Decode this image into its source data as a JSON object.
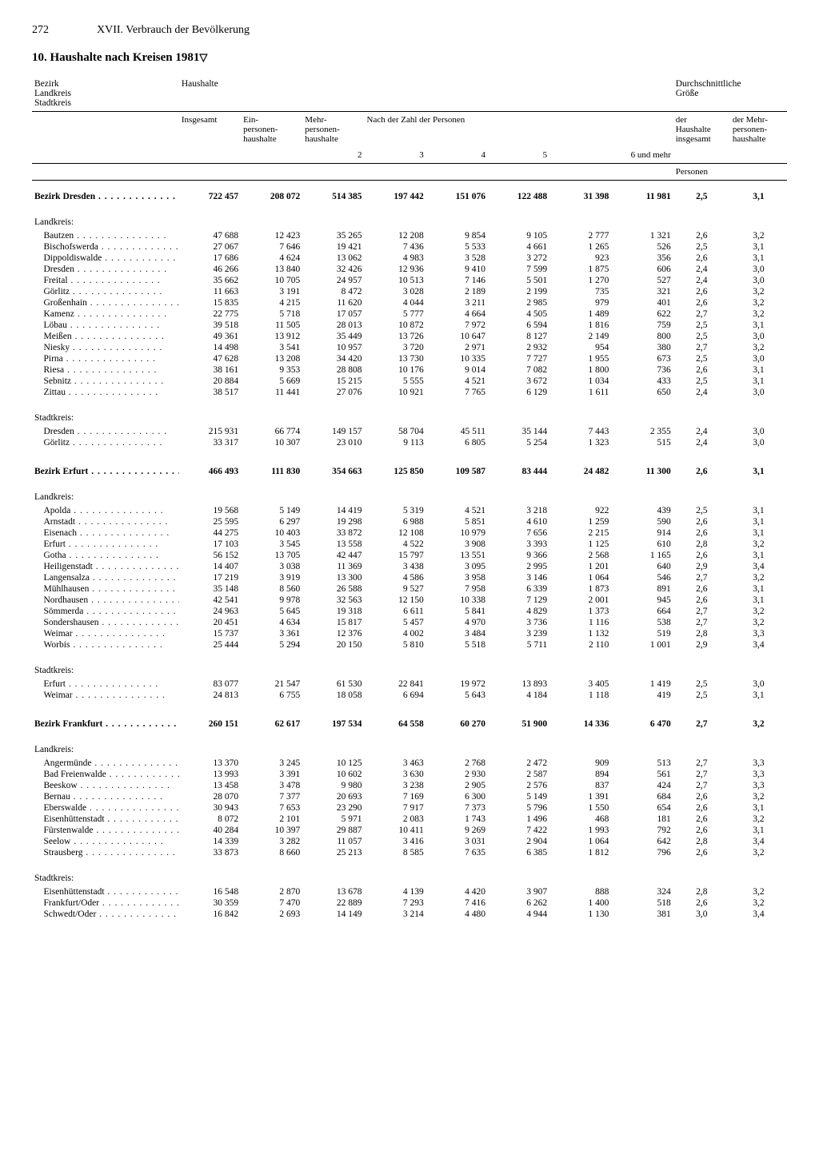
{
  "page": {
    "number": "272",
    "chapter": "XVII. Verbrauch der Bevölkerung"
  },
  "title": "10. Haushalte nach Kreisen 1981",
  "headers": {
    "rowhead": [
      "Bezirk",
      "Landkreis",
      "Stadtkreis"
    ],
    "haushalte": "Haushalte",
    "durchschnitt": [
      "Durchschnittliche",
      "Größe"
    ],
    "insgesamt": "Insgesamt",
    "ein": [
      "Ein-",
      "personen-",
      "haushalte"
    ],
    "mehr": [
      "Mehr-",
      "personen-",
      "haushalte"
    ],
    "nach": "Nach der Zahl der Personen",
    "p2": "2",
    "p3": "3",
    "p4": "4",
    "p5": "5",
    "p6": "6 und mehr",
    "der": "der",
    "derMehr": "der Mehr-",
    "haushalteIns": "Haushalte insgesamt",
    "personenhh": "personen-haushalte",
    "personen": "Personen"
  },
  "labels": {
    "landkreis": "Landkreis:",
    "stadtkreis": "Stadtkreis:"
  },
  "blocks": [
    {
      "bezirk": {
        "name": "Bezirk Dresden",
        "v": [
          "722 457",
          "208 072",
          "514 385",
          "197 442",
          "151 076",
          "122 488",
          "31 398",
          "11 981",
          "2,5",
          "3,1"
        ]
      },
      "landkreis": [
        {
          "name": "Bautzen",
          "v": [
            "47 688",
            "12 423",
            "35 265",
            "12 208",
            "9 854",
            "9 105",
            "2 777",
            "1 321",
            "2,6",
            "3,2"
          ]
        },
        {
          "name": "Bischofswerda",
          "v": [
            "27 067",
            "7 646",
            "19 421",
            "7 436",
            "5 533",
            "4 661",
            "1 265",
            "526",
            "2,5",
            "3,1"
          ]
        },
        {
          "name": "Dippoldiswalde",
          "v": [
            "17 686",
            "4 624",
            "13 062",
            "4 983",
            "3 528",
            "3 272",
            "923",
            "356",
            "2,6",
            "3,1"
          ]
        },
        {
          "name": "Dresden",
          "v": [
            "46 266",
            "13 840",
            "32 426",
            "12 936",
            "9 410",
            "7 599",
            "1 875",
            "606",
            "2,4",
            "3,0"
          ]
        },
        {
          "name": "Freital",
          "v": [
            "35 662",
            "10 705",
            "24 957",
            "10 513",
            "7 146",
            "5 501",
            "1 270",
            "527",
            "2,4",
            "3,0"
          ]
        },
        {
          "name": "Görlitz",
          "v": [
            "11 663",
            "3 191",
            "8 472",
            "3 028",
            "2 189",
            "2 199",
            "735",
            "321",
            "2,6",
            "3,2"
          ]
        },
        {
          "name": "Großenhain",
          "v": [
            "15 835",
            "4 215",
            "11 620",
            "4 044",
            "3 211",
            "2 985",
            "979",
            "401",
            "2,6",
            "3,2"
          ]
        },
        {
          "name": "Kamenz",
          "v": [
            "22 775",
            "5 718",
            "17 057",
            "5 777",
            "4 664",
            "4 505",
            "1 489",
            "622",
            "2,7",
            "3,2"
          ]
        },
        {
          "name": "Löbau",
          "v": [
            "39 518",
            "11 505",
            "28 013",
            "10 872",
            "7 972",
            "6 594",
            "1 816",
            "759",
            "2,5",
            "3,1"
          ]
        },
        {
          "name": "Meißen",
          "v": [
            "49 361",
            "13 912",
            "35 449",
            "13 726",
            "10 647",
            "8 127",
            "2 149",
            "800",
            "2,5",
            "3,0"
          ]
        },
        {
          "name": "Niesky",
          "v": [
            "14 498",
            "3 541",
            "10 957",
            "3 720",
            "2 971",
            "2 932",
            "954",
            "380",
            "2,7",
            "3,2"
          ]
        },
        {
          "name": "Pirna",
          "v": [
            "47 628",
            "13 208",
            "34 420",
            "13 730",
            "10 335",
            "7 727",
            "1 955",
            "673",
            "2,5",
            "3,0"
          ]
        },
        {
          "name": "Riesa",
          "v": [
            "38 161",
            "9 353",
            "28 808",
            "10 176",
            "9 014",
            "7 082",
            "1 800",
            "736",
            "2,6",
            "3,1"
          ]
        },
        {
          "name": "Sebnitz",
          "v": [
            "20 884",
            "5 669",
            "15 215",
            "5 555",
            "4 521",
            "3 672",
            "1 034",
            "433",
            "2,5",
            "3,1"
          ]
        },
        {
          "name": "Zittau",
          "v": [
            "38 517",
            "11 441",
            "27 076",
            "10 921",
            "7 765",
            "6 129",
            "1 611",
            "650",
            "2,4",
            "3,0"
          ]
        }
      ],
      "stadtkreis": [
        {
          "name": "Dresden",
          "v": [
            "215 931",
            "66 774",
            "149 157",
            "58 704",
            "45 511",
            "35 144",
            "7 443",
            "2 355",
            "2,4",
            "3,0"
          ]
        },
        {
          "name": "Görlitz",
          "v": [
            "33 317",
            "10 307",
            "23 010",
            "9 113",
            "6 805",
            "5 254",
            "1 323",
            "515",
            "2,4",
            "3,0"
          ]
        }
      ]
    },
    {
      "bezirk": {
        "name": "Bezirk Erfurt",
        "v": [
          "466 493",
          "111 830",
          "354 663",
          "125 850",
          "109 587",
          "83 444",
          "24 482",
          "11 300",
          "2,6",
          "3,1"
        ]
      },
      "landkreis": [
        {
          "name": "Apolda",
          "v": [
            "19 568",
            "5 149",
            "14 419",
            "5 319",
            "4 521",
            "3 218",
            "922",
            "439",
            "2,5",
            "3,1"
          ]
        },
        {
          "name": "Arnstadt",
          "v": [
            "25 595",
            "6 297",
            "19 298",
            "6 988",
            "5 851",
            "4 610",
            "1 259",
            "590",
            "2,6",
            "3,1"
          ]
        },
        {
          "name": "Eisenach",
          "v": [
            "44 275",
            "10 403",
            "33 872",
            "12 108",
            "10 979",
            "7 656",
            "2 215",
            "914",
            "2,6",
            "3,1"
          ]
        },
        {
          "name": "Erfurt",
          "v": [
            "17 103",
            "3 545",
            "13 558",
            "4 522",
            "3 908",
            "3 393",
            "1 125",
            "610",
            "2,8",
            "3,2"
          ]
        },
        {
          "name": "Gotha",
          "v": [
            "56 152",
            "13 705",
            "42 447",
            "15 797",
            "13 551",
            "9 366",
            "2 568",
            "1 165",
            "2,6",
            "3,1"
          ]
        },
        {
          "name": "Heiligenstadt",
          "v": [
            "14 407",
            "3 038",
            "11 369",
            "3 438",
            "3 095",
            "2 995",
            "1 201",
            "640",
            "2,9",
            "3,4"
          ]
        },
        {
          "name": "Langensalza",
          "v": [
            "17 219",
            "3 919",
            "13 300",
            "4 586",
            "3 958",
            "3 146",
            "1 064",
            "546",
            "2,7",
            "3,2"
          ]
        },
        {
          "name": "Mühlhausen",
          "v": [
            "35 148",
            "8 560",
            "26 588",
            "9 527",
            "7 958",
            "6 339",
            "1 873",
            "891",
            "2,6",
            "3,1"
          ]
        },
        {
          "name": "Nordhausen",
          "v": [
            "42 541",
            "9 978",
            "32 563",
            "12 150",
            "10 338",
            "7 129",
            "2 001",
            "945",
            "2,6",
            "3,1"
          ]
        },
        {
          "name": "Sömmerda",
          "v": [
            "24 963",
            "5 645",
            "19 318",
            "6 611",
            "5 841",
            "4 829",
            "1 373",
            "664",
            "2,7",
            "3,2"
          ]
        },
        {
          "name": "Sondershausen",
          "v": [
            "20 451",
            "4 634",
            "15 817",
            "5 457",
            "4 970",
            "3 736",
            "1 116",
            "538",
            "2,7",
            "3,2"
          ]
        },
        {
          "name": "Weimar",
          "v": [
            "15 737",
            "3 361",
            "12 376",
            "4 002",
            "3 484",
            "3 239",
            "1 132",
            "519",
            "2,8",
            "3,3"
          ]
        },
        {
          "name": "Worbis",
          "v": [
            "25 444",
            "5 294",
            "20 150",
            "5 810",
            "5 518",
            "5 711",
            "2 110",
            "1 001",
            "2,9",
            "3,4"
          ]
        }
      ],
      "stadtkreis": [
        {
          "name": "Erfurt",
          "v": [
            "83 077",
            "21 547",
            "61 530",
            "22 841",
            "19 972",
            "13 893",
            "3 405",
            "1 419",
            "2,5",
            "3,0"
          ]
        },
        {
          "name": "Weimar",
          "v": [
            "24 813",
            "6 755",
            "18 058",
            "6 694",
            "5 643",
            "4 184",
            "1 118",
            "419",
            "2,5",
            "3,1"
          ]
        }
      ]
    },
    {
      "bezirk": {
        "name": "Bezirk Frankfurt",
        "v": [
          "260 151",
          "62 617",
          "197 534",
          "64 558",
          "60 270",
          "51 900",
          "14 336",
          "6 470",
          "2,7",
          "3,2"
        ]
      },
      "landkreis": [
        {
          "name": "Angermünde",
          "v": [
            "13 370",
            "3 245",
            "10 125",
            "3 463",
            "2 768",
            "2 472",
            "909",
            "513",
            "2,7",
            "3,3"
          ]
        },
        {
          "name": "Bad Freienwalde",
          "v": [
            "13 993",
            "3 391",
            "10 602",
            "3 630",
            "2 930",
            "2 587",
            "894",
            "561",
            "2,7",
            "3,3"
          ]
        },
        {
          "name": "Beeskow",
          "v": [
            "13 458",
            "3 478",
            "9 980",
            "3 238",
            "2 905",
            "2 576",
            "837",
            "424",
            "2,7",
            "3,3"
          ]
        },
        {
          "name": "Bernau",
          "v": [
            "28 070",
            "7 377",
            "20 693",
            "7 169",
            "6 300",
            "5 149",
            "1 391",
            "684",
            "2,6",
            "3,2"
          ]
        },
        {
          "name": "Eberswalde",
          "v": [
            "30 943",
            "7 653",
            "23 290",
            "7 917",
            "7 373",
            "5 796",
            "1 550",
            "654",
            "2,6",
            "3,1"
          ]
        },
        {
          "name": "Eisenhüttenstadt",
          "v": [
            "8 072",
            "2 101",
            "5 971",
            "2 083",
            "1 743",
            "1 496",
            "468",
            "181",
            "2,6",
            "3,2"
          ]
        },
        {
          "name": "Fürstenwalde",
          "v": [
            "40 284",
            "10 397",
            "29 887",
            "10 411",
            "9 269",
            "7 422",
            "1 993",
            "792",
            "2,6",
            "3,1"
          ]
        },
        {
          "name": "Seelow",
          "v": [
            "14 339",
            "3 282",
            "11 057",
            "3 416",
            "3 031",
            "2 904",
            "1 064",
            "642",
            "2,8",
            "3,4"
          ]
        },
        {
          "name": "Strausberg",
          "v": [
            "33 873",
            "8 660",
            "25 213",
            "8 585",
            "7 635",
            "6 385",
            "1 812",
            "796",
            "2,6",
            "3,2"
          ]
        }
      ],
      "stadtkreis": [
        {
          "name": "Eisenhüttenstadt",
          "v": [
            "16 548",
            "2 870",
            "13 678",
            "4 139",
            "4 420",
            "3 907",
            "888",
            "324",
            "2,8",
            "3,2"
          ]
        },
        {
          "name": "Frankfurt/Oder",
          "v": [
            "30 359",
            "7 470",
            "22 889",
            "7 293",
            "7 416",
            "6 262",
            "1 400",
            "518",
            "2,6",
            "3,2"
          ]
        },
        {
          "name": "Schwedt/Oder",
          "v": [
            "16 842",
            "2 693",
            "14 149",
            "3 214",
            "4 480",
            "4 944",
            "1 130",
            "381",
            "3,0",
            "3,4"
          ]
        }
      ]
    }
  ]
}
